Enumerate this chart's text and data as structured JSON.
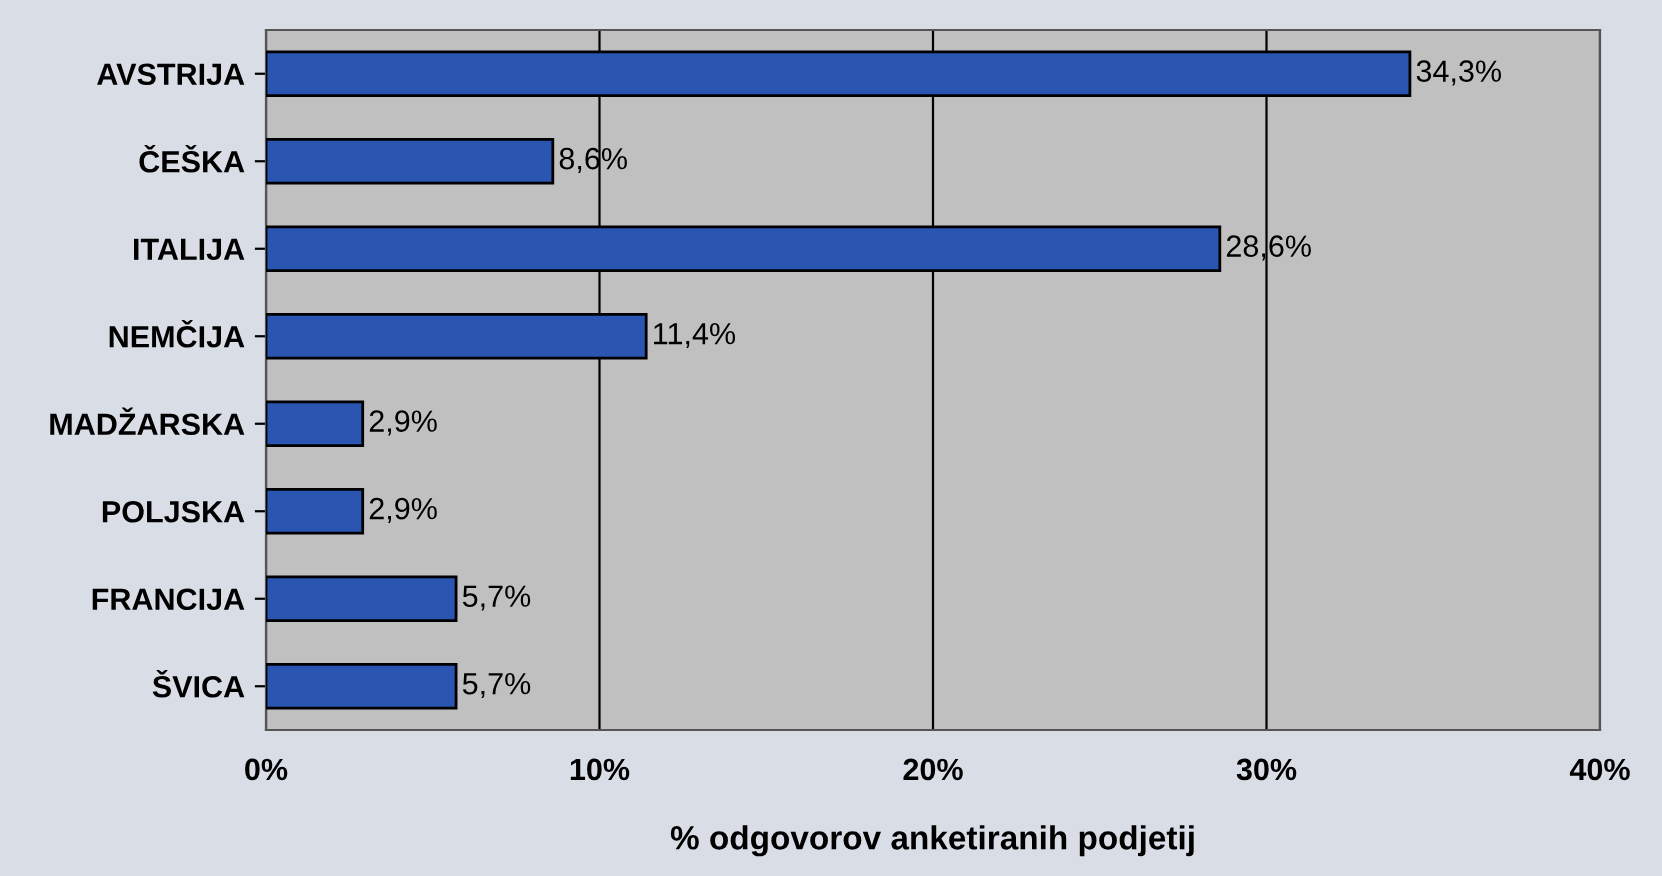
{
  "chart_data": {
    "type": "bar",
    "orientation": "horizontal",
    "xlabel": "% odgovorov anketiranih podjetij",
    "categories": [
      "AVSTRIJA",
      "ČEŠKA",
      "ITALIJA",
      "NEMČIJA",
      "MADŽARSKA",
      "POLJSKA",
      "FRANCIJA",
      "ŠVICA"
    ],
    "values": [
      34.3,
      8.6,
      28.6,
      11.4,
      2.9,
      2.9,
      5.7,
      5.7
    ],
    "value_labels": [
      "34,3%",
      "8,6%",
      "28,6%",
      "11,4%",
      "2,9%",
      "2,9%",
      "5,7%",
      "5,7%"
    ],
    "color": "#2a55b0",
    "xlim": [
      0,
      40
    ],
    "xticks": [
      {
        "value": 0,
        "label": "0%"
      },
      {
        "value": 10,
        "label": "10%"
      },
      {
        "value": 20,
        "label": "20%"
      },
      {
        "value": 30,
        "label": "30%"
      },
      {
        "value": 40,
        "label": "40%"
      }
    ],
    "grid": "x"
  }
}
